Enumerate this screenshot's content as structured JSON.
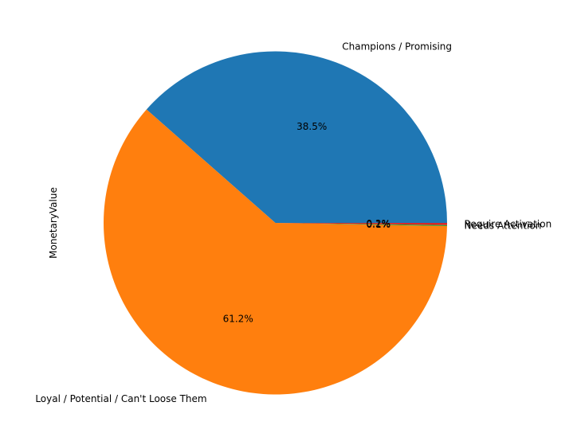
{
  "chart_data": {
    "type": "pie",
    "title": "",
    "xlabel": "",
    "ylabel": "MonetaryValue",
    "categories": [
      "Champions / Promising",
      "Loyal / Potential / Can't Loose Them",
      "Needs Attention",
      "Require Activation"
    ],
    "values": [
      38.5,
      61.2,
      0.1,
      0.2
    ],
    "percent_labels": [
      "38.5%",
      "61.2%",
      "0.1%",
      "0.2%"
    ],
    "colors": [
      "#1f77b4",
      "#ff7f0e",
      "#2ca02c",
      "#d62728"
    ],
    "start_angle": "0 degrees (3 o'clock), counter-clockwise",
    "legend": "none"
  }
}
